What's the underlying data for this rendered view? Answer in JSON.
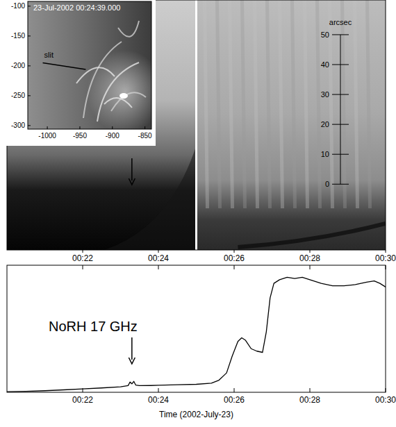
{
  "chart_data": [
    {
      "type": "image",
      "xlim": [
        20,
        30
      ],
      "xticks": [
        {
          "value": 22,
          "label": "00:22"
        },
        {
          "value": 24,
          "label": "00:24"
        },
        {
          "value": 26,
          "label": "00:26"
        },
        {
          "value": 28,
          "label": "00:28"
        },
        {
          "value": 30,
          "label": "00:30"
        }
      ],
      "ylim": [
        -22,
        61.6
      ],
      "yticks": [
        0,
        10,
        20,
        30,
        40,
        50
      ],
      "y_label": "arcsec",
      "annotations": [
        {
          "type": "arrow",
          "x": 23.3
        },
        {
          "type": "line",
          "x": 25,
          "color": "#ffffff"
        }
      ]
    },
    {
      "type": "image",
      "title": "23-Jul-2002 00:24:39.000",
      "xlim": [
        -1030,
        -840
      ],
      "xticks": [
        -1000,
        -950,
        -900,
        -850
      ],
      "ylim": [
        -306,
        -92
      ],
      "yticks": [
        -100,
        -150,
        -200,
        -250,
        -300
      ],
      "annotations": [
        {
          "text": "slit",
          "x": [
            -1007,
            -941
          ],
          "y": [
            -195,
            -206
          ]
        }
      ]
    },
    {
      "type": "line",
      "title": "NoRH 17 GHz",
      "x_label": "Time (2002-July-23)",
      "x": [
        20.0,
        20.5,
        21.0,
        21.5,
        22.0,
        22.5,
        23.0,
        23.2,
        23.25,
        23.3,
        23.35,
        23.4,
        23.5,
        23.8,
        24.0,
        24.5,
        25.0,
        25.4,
        25.6,
        25.8,
        25.95,
        26.1,
        26.2,
        26.3,
        26.45,
        26.6,
        26.75,
        26.85,
        26.95,
        27.05,
        27.2,
        27.4,
        27.6,
        27.8,
        28.0,
        28.3,
        28.6,
        28.9,
        29.2,
        29.5,
        29.7,
        29.85,
        30.0
      ],
      "values": [
        0.5,
        0.8,
        1.3,
        2.0,
        2.8,
        3.6,
        4.5,
        5.5,
        8.5,
        7.0,
        9.0,
        6.0,
        5.5,
        5.6,
        5.8,
        6.2,
        6.6,
        7.5,
        10,
        16,
        30,
        42,
        45,
        43,
        36,
        34,
        33,
        50,
        78,
        90,
        93,
        95,
        94,
        95,
        93,
        90,
        88,
        88,
        89,
        91,
        92,
        90,
        87
      ],
      "color": "#000000",
      "xlim": [
        20,
        30
      ],
      "xticks": [
        {
          "value": 22,
          "label": "00:22"
        },
        {
          "value": 24,
          "label": "00:24"
        },
        {
          "value": 26,
          "label": "00:26"
        },
        {
          "value": 28,
          "label": "00:28"
        },
        {
          "value": 30,
          "label": "00:30"
        }
      ],
      "ylim": [
        0,
        105
      ],
      "tick_labels": "x",
      "annotations": [
        {
          "type": "arrow",
          "x": 23.3
        }
      ]
    }
  ]
}
